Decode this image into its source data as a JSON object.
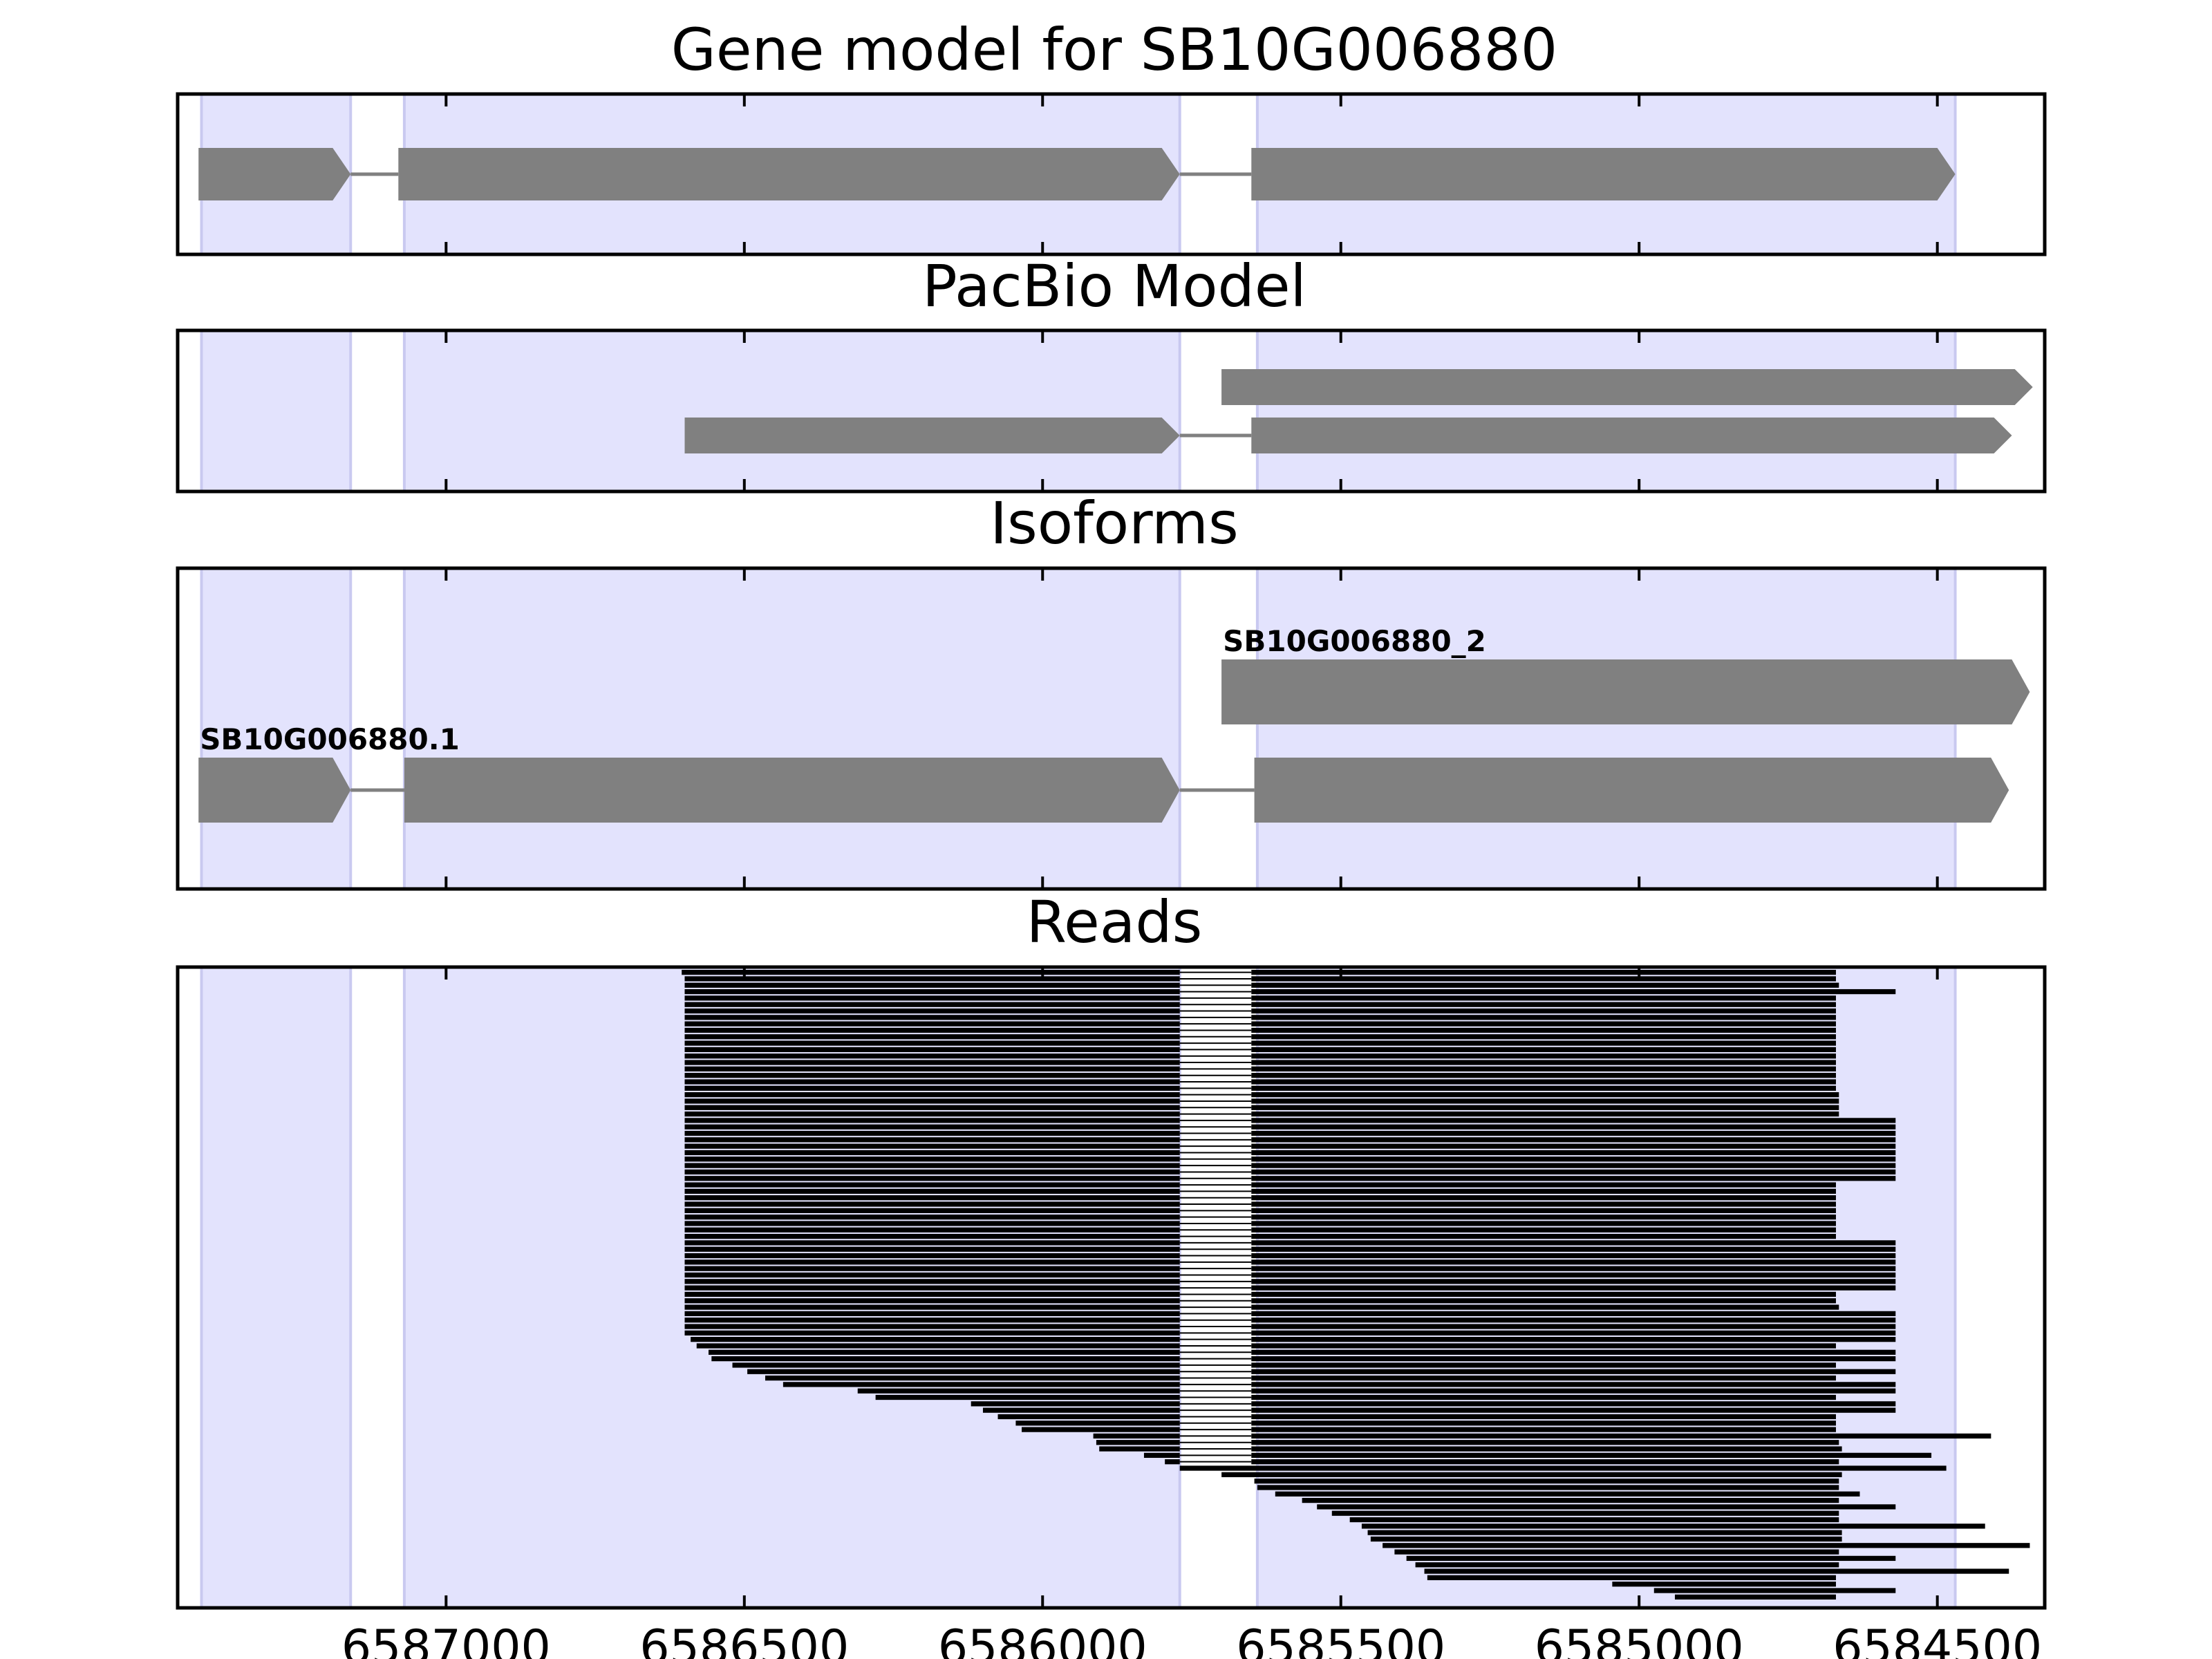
{
  "figure": {
    "panels": [
      {
        "key": "gene",
        "title": "Gene model for SB10G006880"
      },
      {
        "key": "pacbio",
        "title": "PacBio Model"
      },
      {
        "key": "isoforms",
        "title": "Isoforms"
      },
      {
        "key": "reads",
        "title": "Reads"
      }
    ]
  },
  "chart_data": {
    "type": "gene-track",
    "x_axis": {
      "label": "",
      "reversed": true,
      "range": [
        6587450,
        6584320
      ],
      "ticks": [
        6587000,
        6586500,
        6586000,
        6585500,
        6585000,
        6584500
      ],
      "tick_labels": [
        "6587000",
        "6586500",
        "6586000",
        "6585500",
        "6585000",
        "6584500"
      ]
    },
    "colors": {
      "exon_shade": "#e3e3fd",
      "exon_shade_edge": "#c9c9f0",
      "feature": "#808080",
      "read": "#000000"
    },
    "exon_shading": [
      [
        6587410,
        6587160
      ],
      [
        6587070,
        6585770
      ],
      [
        6585640,
        6584470
      ]
    ],
    "gene_model": [
      {
        "exons": [
          [
            6587415,
            6587160
          ],
          [
            6587080,
            6585770
          ],
          [
            6585650,
            6584470
          ]
        ]
      }
    ],
    "pacbio_model": [
      {
        "exons": [
          [
            6585700,
            6584340
          ]
        ]
      },
      {
        "exons": [
          [
            6586600,
            6585770
          ],
          [
            6585650,
            6584375
          ]
        ]
      }
    ],
    "isoforms": [
      {
        "name": "SB10G006880_2",
        "exons": [
          [
            6585700,
            6584345
          ]
        ]
      },
      {
        "name": "SB10G006880.1",
        "exons": [
          [
            6587415,
            6587160
          ],
          [
            6587070,
            6585770
          ],
          [
            6585645,
            6584380
          ]
        ]
      }
    ],
    "reads": {
      "count": 98,
      "splice_gap": [
        6585770,
        6585650
      ],
      "read_starts": [
        6586605,
        6586600,
        6586600,
        6586600,
        6586600,
        6586600,
        6586600,
        6586600,
        6586600,
        6586600,
        6586600,
        6586600,
        6586600,
        6586600,
        6586600,
        6586600,
        6586600,
        6586600,
        6586600,
        6586600,
        6586600,
        6586600,
        6586600,
        6586600,
        6586600,
        6586600,
        6586600,
        6586600,
        6586600,
        6586600,
        6586600,
        6586600,
        6586600,
        6586600,
        6586600,
        6586600,
        6586600,
        6586600,
        6586600,
        6586600,
        6586600,
        6586600,
        6586600,
        6586600,
        6586600,
        6586600,
        6586600,
        6586600,
        6586600,
        6586600,
        6586600,
        6586600,
        6586600,
        6586600,
        6586600,
        6586600,
        6586600,
        6586590,
        6586580,
        6586560,
        6586555,
        6586520,
        6586495,
        6586465,
        6586435,
        6586310,
        6586280,
        6586120,
        6586100,
        6586075,
        6586045,
        6586035,
        6585915,
        6585910,
        6585905,
        6585830,
        6585795,
        6585770,
        6585700,
        6585645,
        6585640,
        6585610,
        6585565,
        6585540,
        6585515,
        6585485,
        6585465,
        6585455,
        6585450,
        6585430,
        6585410,
        6585390,
        6585375,
        6585360,
        6585355,
        6585045,
        6584975,
        6584940
      ],
      "read_ends": [
        6584670,
        6584670,
        6584665,
        6584570,
        6584670,
        6584670,
        6584670,
        6584670,
        6584670,
        6584670,
        6584670,
        6584670,
        6584670,
        6584670,
        6584670,
        6584670,
        6584670,
        6584670,
        6584670,
        6584665,
        6584665,
        6584665,
        6584665,
        6584570,
        6584570,
        6584570,
        6584570,
        6584570,
        6584570,
        6584570,
        6584570,
        6584570,
        6584570,
        6584670,
        6584670,
        6584670,
        6584670,
        6584670,
        6584670,
        6584670,
        6584670,
        6584670,
        6584570,
        6584570,
        6584570,
        6584570,
        6584570,
        6584570,
        6584570,
        6584570,
        6584670,
        6584670,
        6584665,
        6584570,
        6584570,
        6584570,
        6584570,
        6584570,
        6584670,
        6584570,
        6584570,
        6584670,
        6584570,
        6584670,
        6584570,
        6584570,
        6584670,
        6584570,
        6584570,
        6584670,
        6584670,
        6584670,
        6584410,
        6584665,
        6584660,
        6584510,
        6584665,
        6584485,
        6584660,
        6584665,
        6584665,
        6584630,
        6584665,
        6584570,
        6584665,
        6584665,
        6584420,
        6584660,
        6584660,
        6584345,
        6584665,
        6584570,
        6584665,
        6584380,
        6584670,
        6584670,
        6584570,
        6584670
      ]
    }
  }
}
